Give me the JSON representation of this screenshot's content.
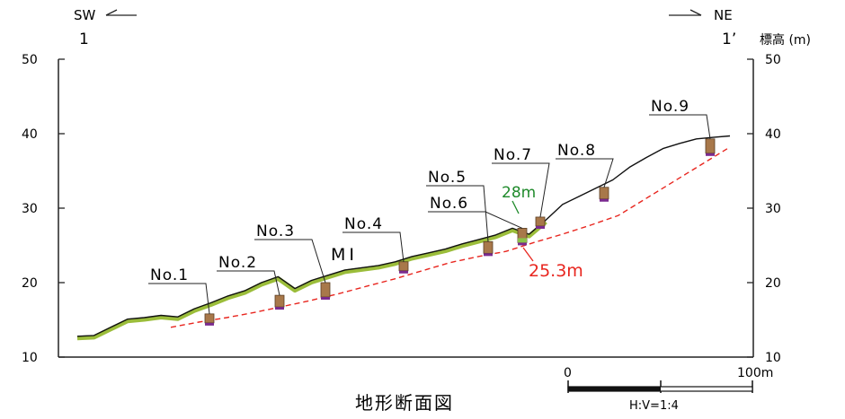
{
  "directions": {
    "left": {
      "label": "SW",
      "station": "1"
    },
    "right": {
      "label": "NE",
      "station": "1’"
    }
  },
  "axis": {
    "unit_label": "標高 (m)",
    "ticks": [
      "50",
      "40",
      "30",
      "20",
      "10"
    ],
    "ylim": [
      10,
      50
    ],
    "grid": false
  },
  "profile": {
    "ground_surface_elev": [
      12.8,
      12.9,
      14.0,
      15.1,
      15.3,
      15.6,
      15.4,
      16.5,
      17.3,
      18.2,
      18.9,
      20.0,
      20.8,
      19.2,
      20.3,
      21.0,
      21.7,
      22.0,
      22.3,
      22.8,
      23.5,
      24.0,
      24.5,
      25.2,
      25.8,
      26.4,
      27.3,
      26.5,
      28.4,
      30.5,
      31.6,
      32.7,
      33.8,
      35.5,
      36.8,
      38.0,
      38.7,
      39.3,
      39.5,
      39.7
    ],
    "slip_surface_elev": [
      14.0,
      14.7,
      15.3,
      16.0,
      16.8,
      17.6,
      18.5,
      19.5,
      20.5,
      21.6,
      22.7,
      23.5,
      24.2,
      25.4,
      26.5,
      27.7,
      29.0,
      31.3,
      33.6,
      35.9,
      38.2
    ],
    "colors": {
      "ground": "#111111",
      "vegetation": "#9bbd3a",
      "slip": "#e8261f"
    }
  },
  "boreholes": [
    {
      "label": "No.1",
      "elev": 15.8
    },
    {
      "label": "No.2",
      "elev": 18.3
    },
    {
      "label": "No.3",
      "elev": 20.0
    },
    {
      "label": "No.4",
      "elev": 22.8
    },
    {
      "label": "No.5",
      "elev": 25.5
    },
    {
      "label": "No.6",
      "elev": 27.3
    },
    {
      "label": "No.7",
      "elev": 28.8
    },
    {
      "label": "No.8",
      "elev": 32.8
    },
    {
      "label": "No.9",
      "elev": 39.3
    }
  ],
  "annotations": {
    "mi": "MⅠ",
    "angle_green": "28m",
    "depth_red": "25.3m",
    "angle_color": "#1f8a2b",
    "depth_color": "#e8261f"
  },
  "scale_bar": {
    "start": "0",
    "end": "100m",
    "ratio": "H:V=1:4"
  },
  "title": "地形断面図"
}
